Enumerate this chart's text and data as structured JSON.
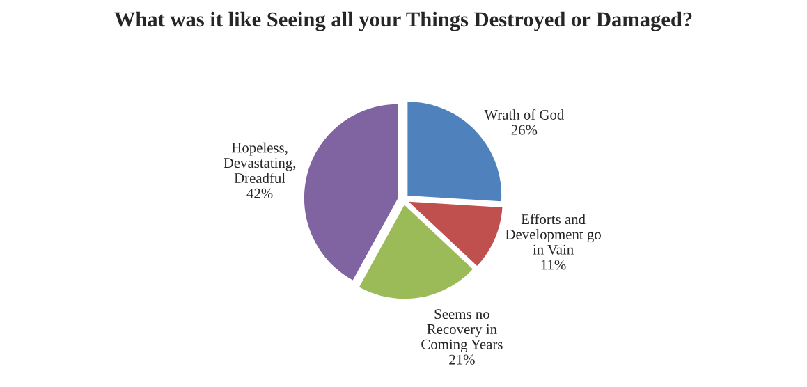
{
  "chart_data": {
    "type": "pie",
    "title": "What was it like Seeing all your Things Destroyed or Damaged?",
    "categories": [
      "Wrath of God",
      "Efforts and\nDevelopment go\nin Vain",
      "Seems no\nRecovery in\nComing Years",
      "Hopeless,\nDevastating,\nDreadful"
    ],
    "values": [
      26,
      11,
      21,
      42
    ],
    "colors": [
      "#4f81bd",
      "#c0504d",
      "#9bbb59",
      "#8064a2"
    ],
    "value_labels": [
      "26%",
      "11%",
      "21%",
      "42%"
    ],
    "legend": false
  }
}
